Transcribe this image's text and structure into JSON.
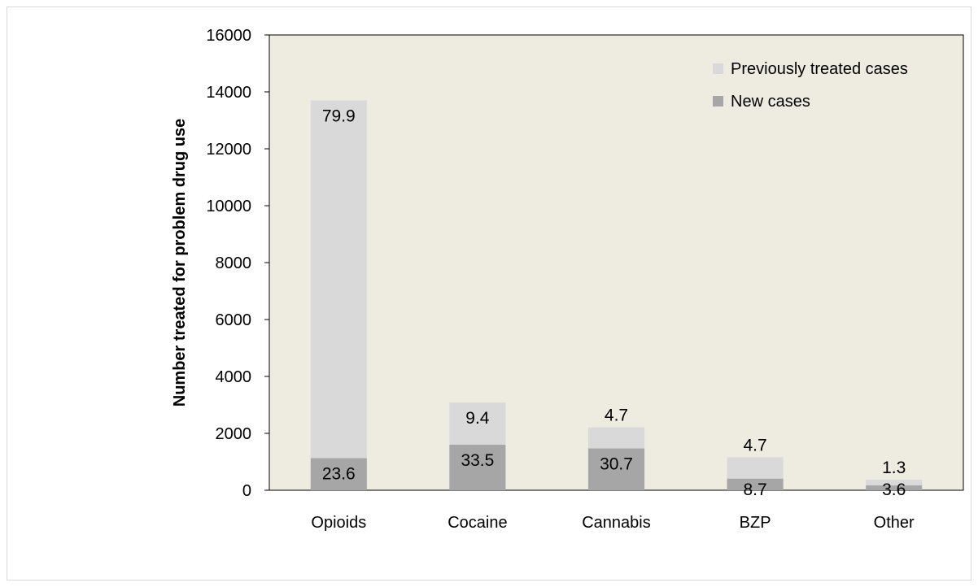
{
  "chart_data": {
    "type": "bar",
    "stacked": true,
    "categories": [
      "Opioids",
      "Cocaine",
      "Cannabis",
      "BZP",
      "Other"
    ],
    "series": [
      {
        "name": "New cases",
        "values": [
          1130,
          1600,
          1470,
          410,
          170
        ],
        "labels": [
          "23.6",
          "33.5",
          "30.7",
          "8.7",
          "3.6"
        ],
        "color": "#a6a6a6"
      },
      {
        "name": "Previously treated cases",
        "values": [
          12570,
          1480,
          740,
          750,
          200
        ],
        "labels": [
          "79.9",
          "9.4",
          "4.7",
          "4.7",
          "1.3"
        ],
        "color": "#d9d9d9"
      }
    ],
    "title": "",
    "xlabel": "",
    "ylabel": "Number treated for problem drug use",
    "ylim": [
      0,
      16000
    ],
    "yticks": [
      0,
      2000,
      4000,
      6000,
      8000,
      10000,
      12000,
      14000,
      16000
    ],
    "grid": false,
    "legend": "top-right",
    "plot_background": "#eeebe0"
  }
}
